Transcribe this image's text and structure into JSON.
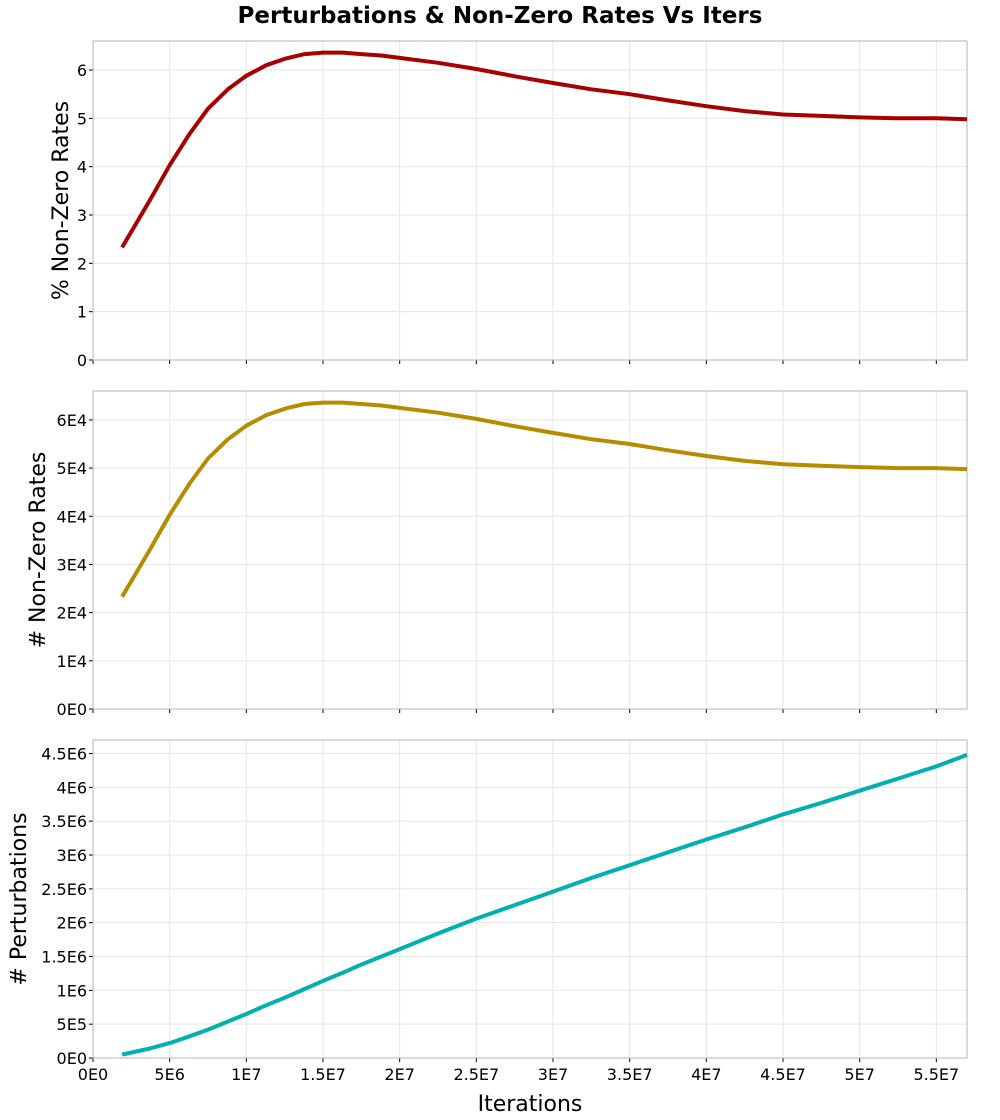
{
  "chart_data": {
    "type": "line",
    "title": "Perturbations & Non-Zero Rates Vs Iters",
    "xlabel": "Iterations",
    "xlim": [
      0,
      57000000
    ],
    "x_ticks": [
      0,
      5000000,
      10000000,
      15000000,
      20000000,
      25000000,
      30000000,
      35000000,
      40000000,
      45000000,
      50000000,
      55000000
    ],
    "x_tick_labels": [
      "0E0",
      "5E6",
      "1E7",
      "1.5E7",
      "2E7",
      "2.5E7",
      "3E7",
      "3.5E7",
      "4E7",
      "4.5E7",
      "5E7",
      "5.5E7"
    ],
    "grid": true,
    "x": [
      1900000,
      3700000,
      5000000,
      6300000,
      7500000,
      8800000,
      10000000,
      11300000,
      12600000,
      13800000,
      15000000,
      16300000,
      17500000,
      18800000,
      20000000,
      22500000,
      25000000,
      27500000,
      30000000,
      32500000,
      35000000,
      37500000,
      40000000,
      42500000,
      45000000,
      47500000,
      50000000,
      52500000,
      55000000,
      57000000
    ],
    "panels": [
      {
        "ylabel": "% Non-Zero Rates",
        "ylim": [
          0,
          6.6
        ],
        "y_ticks": [
          0,
          1,
          2,
          3,
          4,
          5,
          6
        ],
        "y_tick_labels": [
          "0",
          "1",
          "2",
          "3",
          "4",
          "5",
          "6"
        ],
        "color": "#a80000",
        "series": [
          {
            "values": [
              2.33,
              3.3,
              4.03,
              4.68,
              5.2,
              5.6,
              5.88,
              6.1,
              6.24,
              6.33,
              6.36,
              6.36,
              6.33,
              6.3,
              6.25,
              6.15,
              6.02,
              5.87,
              5.73,
              5.6,
              5.5,
              5.37,
              5.25,
              5.15,
              5.08,
              5.05,
              5.02,
              5.0,
              5.0,
              4.98
            ]
          }
        ]
      },
      {
        "ylabel": "# Non-Zero Rates",
        "ylim": [
          0,
          66000
        ],
        "y_ticks": [
          0,
          10000,
          20000,
          30000,
          40000,
          50000,
          60000
        ],
        "y_tick_labels": [
          "0E0",
          "1E4",
          "2E4",
          "3E4",
          "4E4",
          "5E4",
          "6E4"
        ],
        "color": "#b58c00",
        "series": [
          {
            "values": [
              23300,
              33000,
              40300,
              46800,
              52000,
              56000,
              58800,
              61000,
              62400,
              63300,
              63600,
              63600,
              63300,
              63000,
              62500,
              61500,
              60200,
              58700,
              57300,
              56000,
              55000,
              53700,
              52500,
              51500,
              50800,
              50500,
              50200,
              50000,
              50000,
              49800
            ]
          }
        ]
      },
      {
        "ylabel": "# Perturbations",
        "ylim": [
          0,
          4700000
        ],
        "y_ticks": [
          0,
          500000,
          1000000,
          1500000,
          2000000,
          2500000,
          3000000,
          3500000,
          4000000,
          4500000
        ],
        "y_tick_labels": [
          "0E0",
          "5E5",
          "1E6",
          "1.5E6",
          "2E6",
          "2.5E6",
          "3E6",
          "3.5E6",
          "4E6",
          "4.5E6"
        ],
        "color": "#00b0b0",
        "series": [
          {
            "values": [
              50000,
              140000,
              220000,
              320000,
              420000,
              540000,
              650000,
              780000,
              900000,
              1020000,
              1140000,
              1260000,
              1380000,
              1500000,
              1610000,
              1840000,
              2060000,
              2260000,
              2460000,
              2660000,
              2850000,
              3040000,
              3230000,
              3410000,
              3600000,
              3770000,
              3950000,
              4130000,
              4310000,
              4480000
            ]
          }
        ]
      }
    ]
  }
}
